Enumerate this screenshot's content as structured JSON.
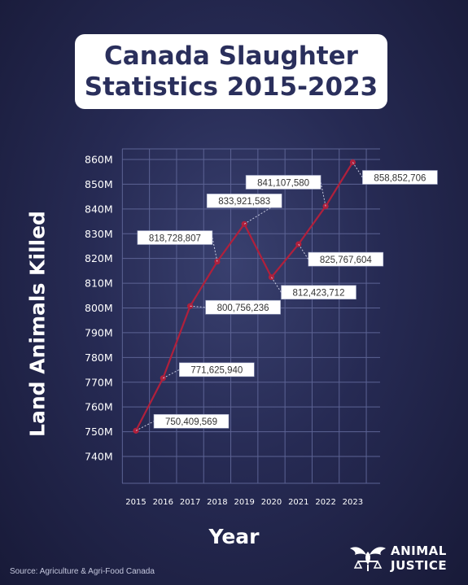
{
  "title": {
    "line1": "Canada Slaughter",
    "line2": "Statistics 2015-2023"
  },
  "chart_data": {
    "type": "line",
    "x": [
      "2015",
      "2016",
      "2017",
      "2018",
      "2019",
      "2020",
      "2021",
      "2022",
      "2023"
    ],
    "series": [
      {
        "values": [
          750409569,
          771625940,
          800756236,
          818728807,
          833921583,
          812423712,
          825767604,
          841107580,
          858852706
        ]
      }
    ],
    "data_labels": [
      "750,409,569",
      "771,625,940",
      "800,756,236",
      "818,728,807",
      "833,921,583",
      "812,423,712",
      "825,767,604",
      "841,107,580",
      "858,852,706"
    ],
    "y_tick_labels": [
      "740M",
      "750M",
      "760M",
      "770M",
      "780M",
      "790M",
      "800M",
      "810M",
      "820M",
      "830M",
      "840M",
      "850M",
      "860M"
    ],
    "ylim": [
      740000000,
      860000000
    ],
    "grid": true,
    "xlabel": "Year",
    "ylabel": "Land Animals Killed",
    "line_color": "#b0203c",
    "gridline_color": "#5c6394"
  },
  "source": "Source: Agriculture & Agri-Food Canada",
  "logo": {
    "line1": "ANIMAL",
    "line2": "JUSTICE"
  }
}
